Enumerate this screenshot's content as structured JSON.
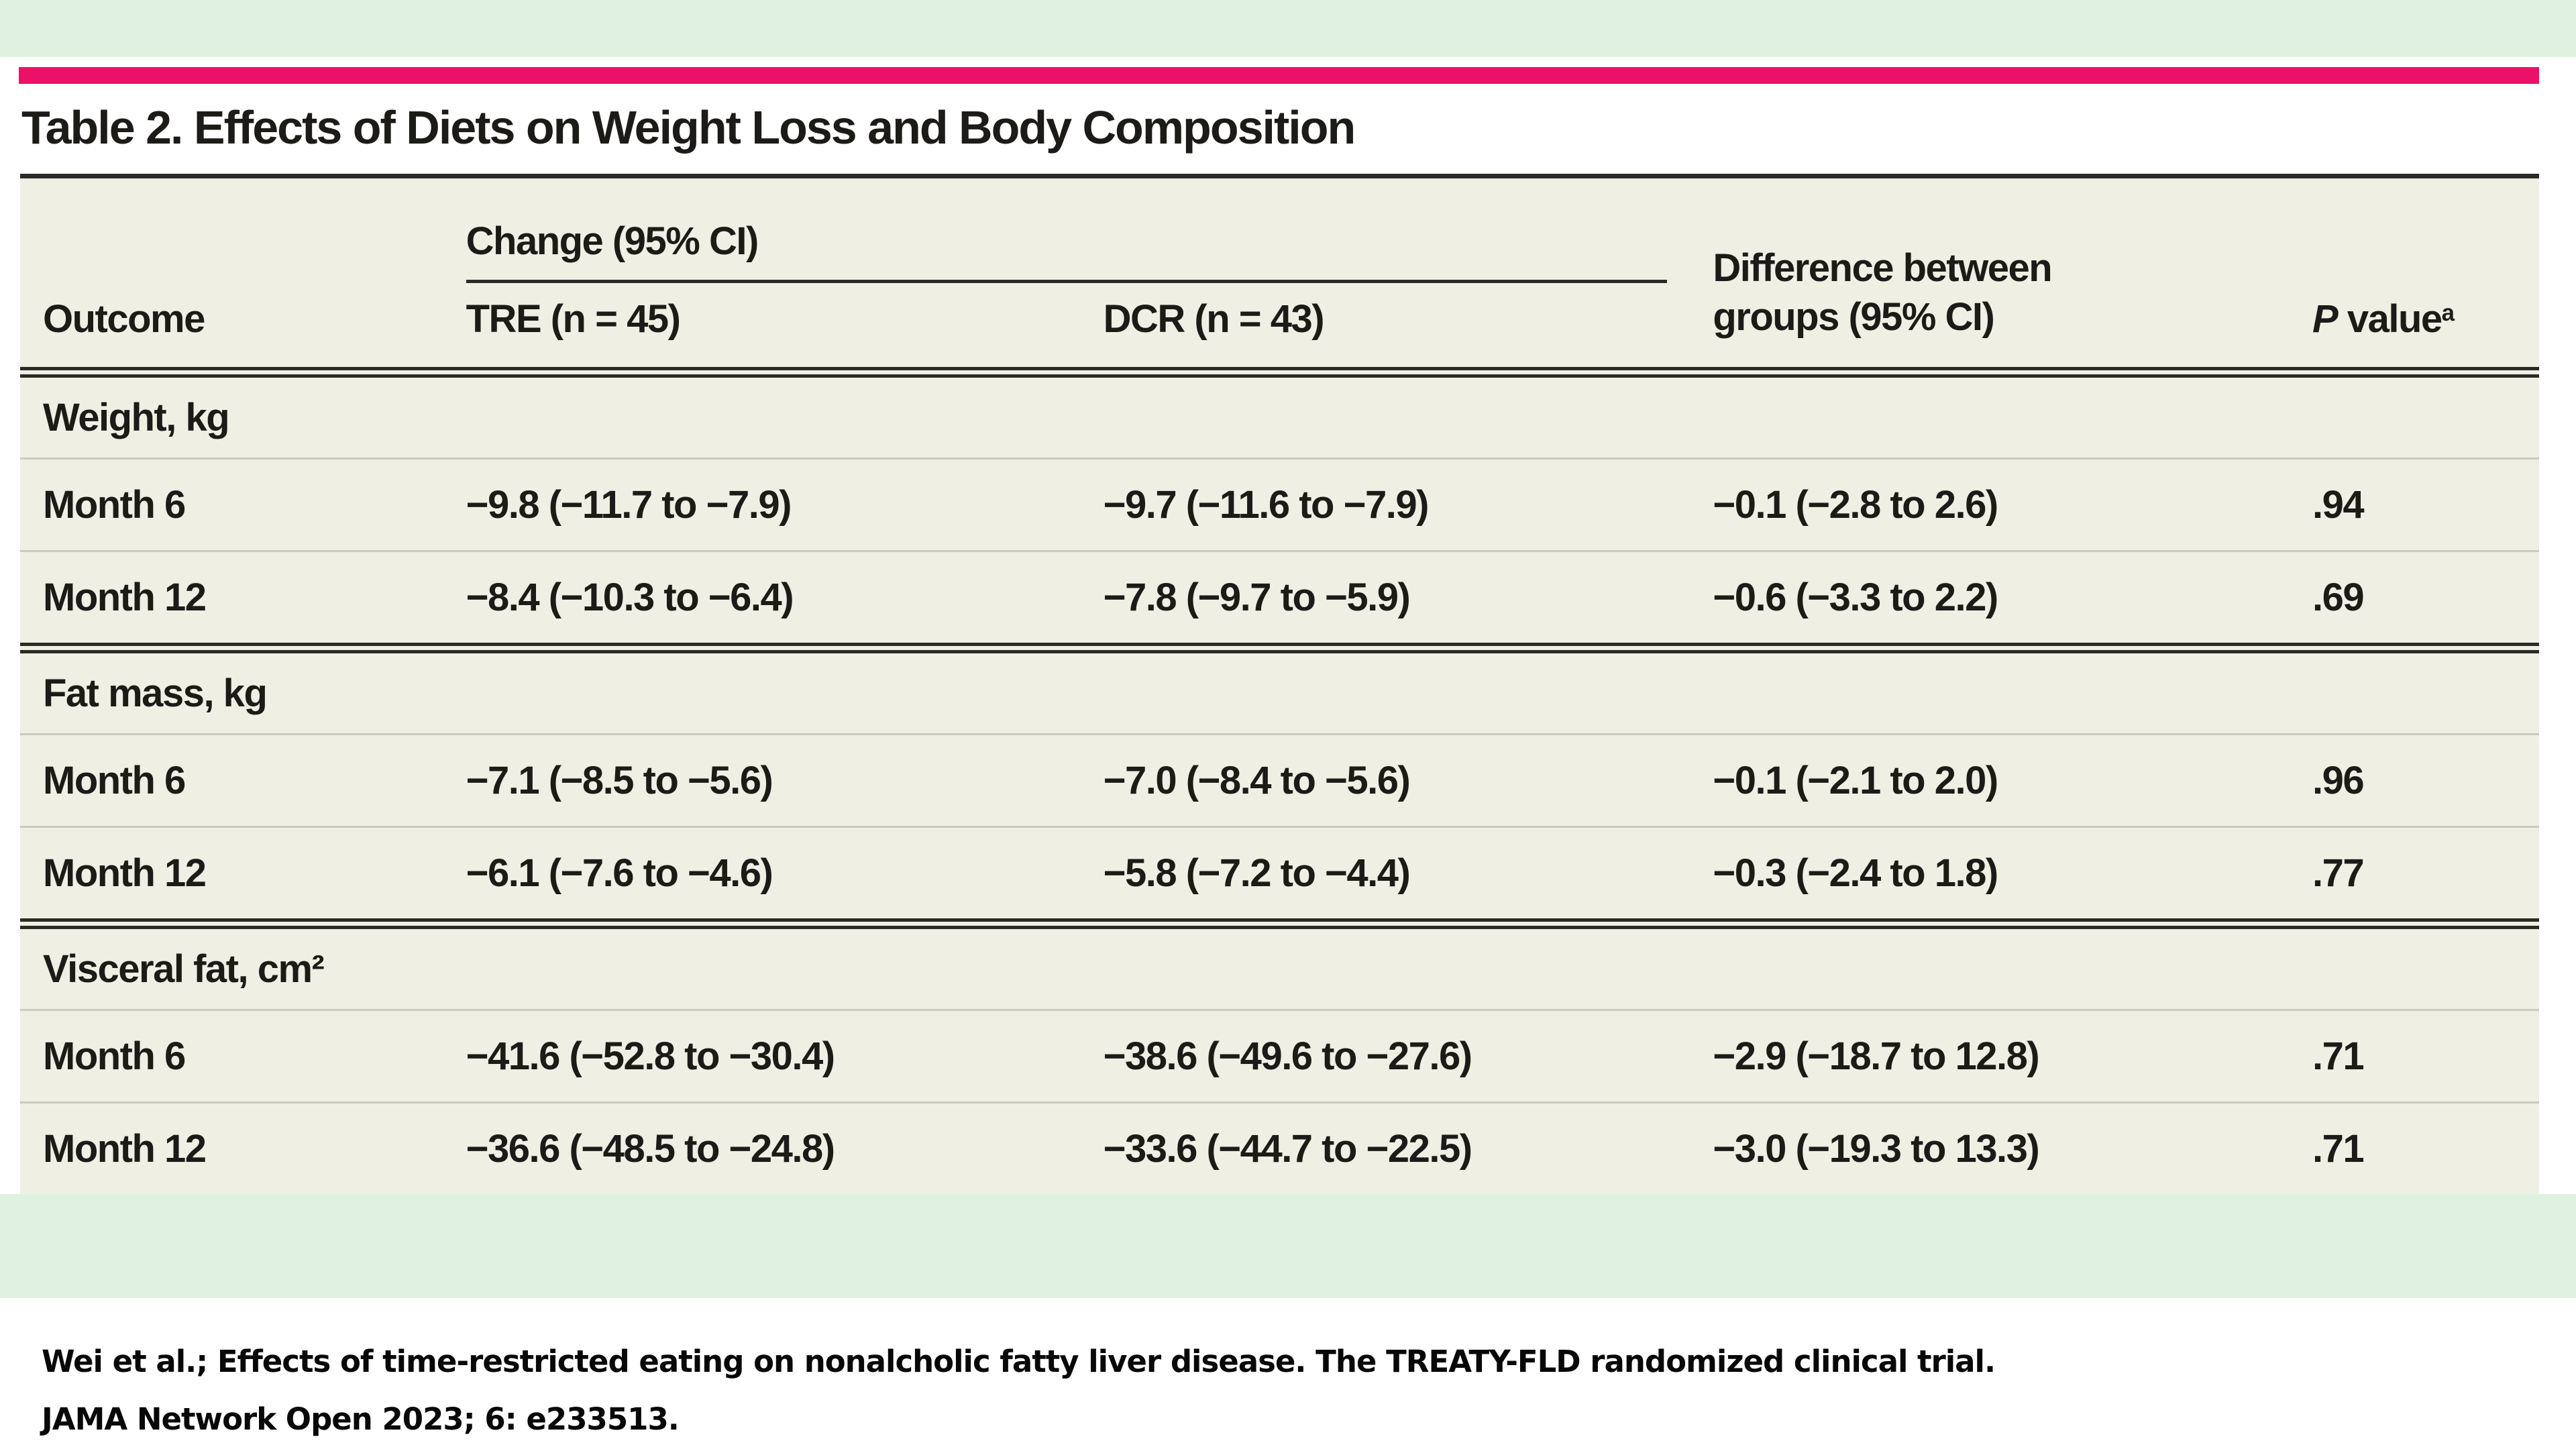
{
  "title": "Table 2. Effects of Diets on Weight Loss and Body Composition",
  "colors": {
    "accent_pink_bar": "#ec1166",
    "green_band": "#dff2e1",
    "table_background": "#f0efe3",
    "rule_dark": "#2b2a26",
    "rule_light": "#cbcabb"
  },
  "table": {
    "headers": {
      "outcome": "Outcome",
      "change_group": "Change (95% CI)",
      "tre": "TRE (n = 45)",
      "dcr": "DCR (n = 43)",
      "difference": "Difference between groups (95% CI)",
      "p_italic": "P",
      "p_rest": " value",
      "p_superscript": "a"
    },
    "sections": [
      {
        "label": "Weight, kg",
        "rows": [
          {
            "outcome": "Month 6",
            "tre": "−9.8 (−11.7 to −7.9)",
            "dcr": "−9.7 (−11.6 to −7.9)",
            "difference": "−0.1 (−2.8 to 2.6)",
            "p": ".94"
          },
          {
            "outcome": "Month 12",
            "tre": "−8.4 (−10.3 to −6.4)",
            "dcr": "−7.8 (−9.7 to −5.9)",
            "difference": "−0.6 (−3.3 to 2.2)",
            "p": ".69"
          }
        ]
      },
      {
        "label": "Fat mass, kg",
        "rows": [
          {
            "outcome": "Month 6",
            "tre": "−7.1 (−8.5 to −5.6)",
            "dcr": "−7.0 (−8.4 to −5.6)",
            "difference": "−0.1 (−2.1 to 2.0)",
            "p": ".96"
          },
          {
            "outcome": "Month 12",
            "tre": "−6.1 (−7.6 to −4.6)",
            "dcr": "−5.8 (−7.2 to −4.4)",
            "difference": "−0.3 (−2.4 to 1.8)",
            "p": ".77"
          }
        ]
      },
      {
        "label": "Visceral fat, cm²",
        "rows": [
          {
            "outcome": "Month 6",
            "tre": "−41.6 (−52.8 to −30.4)",
            "dcr": "−38.6 (−49.6 to −27.6)",
            "difference": "−2.9 (−18.7 to 12.8)",
            "p": ".71"
          },
          {
            "outcome": "Month 12",
            "tre": "−36.6 (−48.5 to −24.8)",
            "dcr": "−33.6 (−44.7 to −22.5)",
            "difference": "−3.0 (−19.3 to 13.3)",
            "p": ".71"
          }
        ]
      }
    ]
  },
  "citation": {
    "line1": "Wei et al.; Effects of time-restricted eating on nonalcholic fatty liver disease. The TREATY-FLD randomized clinical trial.",
    "line2": "JAMA Network Open 2023; 6: e233513."
  }
}
